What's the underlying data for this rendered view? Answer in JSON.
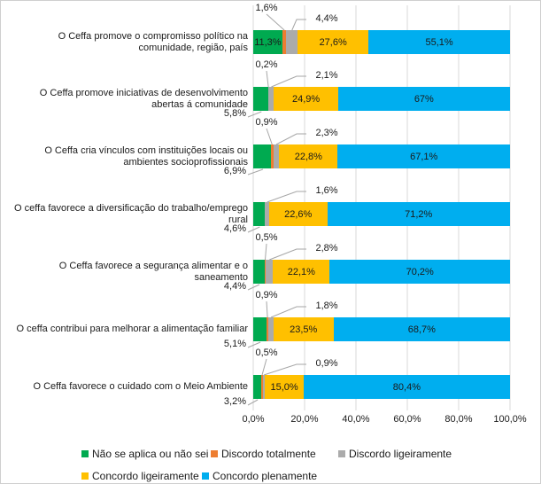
{
  "chart_data": {
    "type": "bar",
    "orientation": "horizontal",
    "stacked": true,
    "title": "",
    "xlabel": "",
    "ylabel": "",
    "xlim": [
      0,
      100
    ],
    "grid": "vertical-gridlines-every-20pct",
    "legend_position": "bottom",
    "x_ticks": [
      "0,0%",
      "20,0%",
      "40,0%",
      "60,0%",
      "80,0%",
      "100,0%"
    ],
    "categories": [
      "O Ceffa promove o compromisso político na comunidade, região, país",
      "O Ceffa promove iniciativas de desenvolvimento abertas á comunidade",
      "O Ceffa cria vínculos com instituições locais ou ambientes socioprofissionais",
      "O ceffa favorece a diversificação do trabalho/emprego rural",
      "O Ceffa favorece a segurança alimentar e o saneamento",
      "O ceffa contribui para melhorar a alimentação familiar",
      "O Ceffa favorece o cuidado com o Meio Ambiente"
    ],
    "series": [
      {
        "name": "Não se aplica ou não sei",
        "color": "#00AA50",
        "values": [
          11.3,
          5.8,
          6.9,
          4.6,
          4.4,
          5.1,
          3.2
        ],
        "labels": [
          "11,3%",
          "5,8%",
          "6,9%",
          "4,6%",
          "4,4%",
          "5,1%",
          "3,2%"
        ]
      },
      {
        "name": "Discordo totalmente",
        "color": "#ED7D31",
        "values": [
          1.6,
          0.2,
          0.9,
          0,
          0.5,
          0.9,
          0.5
        ],
        "labels": [
          "1,6%",
          "0,2%",
          "0,9%",
          "",
          "0,5%",
          "0,9%",
          "0,5%"
        ]
      },
      {
        "name": "Discordo ligeiramente",
        "color": "#ABABAB",
        "values": [
          4.4,
          2.1,
          2.3,
          1.6,
          2.8,
          1.8,
          0.9
        ],
        "labels": [
          "4,4%",
          "2,1%",
          "2,3%",
          "1,6%",
          "2,8%",
          "1,8%",
          "0,9%"
        ]
      },
      {
        "name": "Concordo ligeiramente",
        "color": "#FFC000",
        "values": [
          27.6,
          24.9,
          22.8,
          22.6,
          22.1,
          23.5,
          15.0
        ],
        "labels": [
          "27,6%",
          "24,9%",
          "22,8%",
          "22,6%",
          "22,1%",
          "23,5%",
          "15,0%"
        ]
      },
      {
        "name": "Concordo plenamente",
        "color": "#00AEEF",
        "values": [
          55.1,
          67.0,
          67.1,
          71.2,
          70.2,
          68.7,
          80.4
        ],
        "labels": [
          "55,1%",
          "67%",
          "67,1%",
          "71,2%",
          "70,2%",
          "68,7%",
          "80,4%"
        ]
      }
    ],
    "legend_rows": [
      [
        0,
        1,
        2
      ],
      [
        3,
        4
      ]
    ]
  },
  "colors": {
    "gridline": "#D9D9D9",
    "leader_line": "#A6A6A6",
    "text": "#1a1a1a",
    "border": "#cfcfcf",
    "background": "#ffffff"
  }
}
